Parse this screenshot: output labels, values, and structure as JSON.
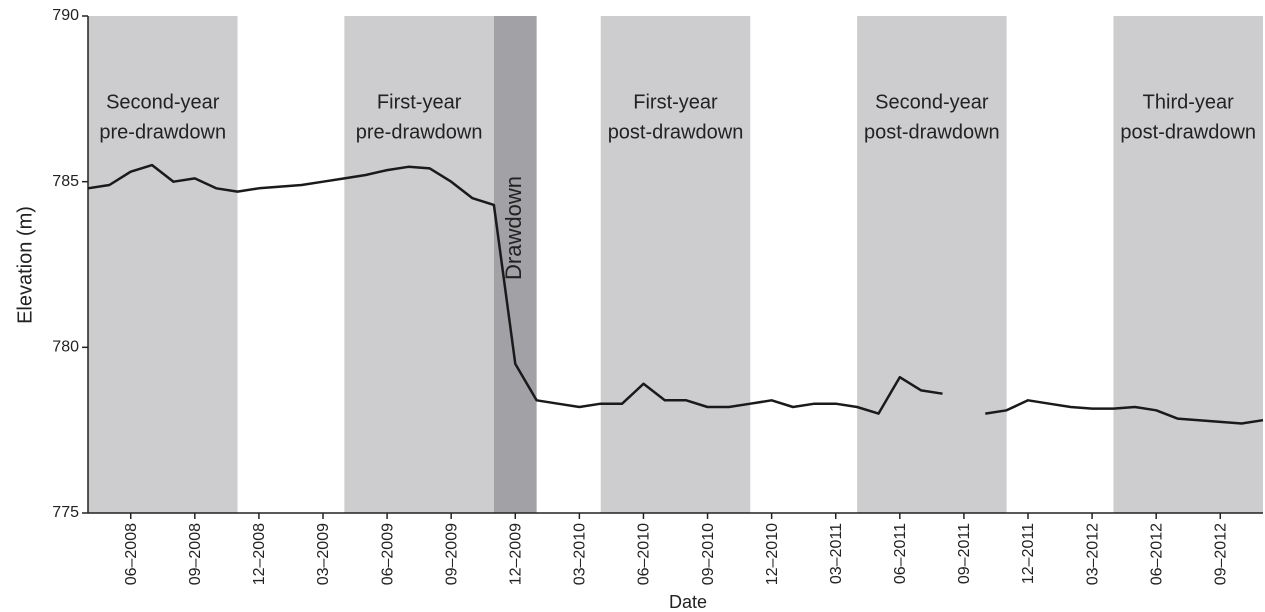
{
  "chart_data": {
    "type": "line",
    "x_label": "Date",
    "y_label": "Elevation (m)",
    "x": [
      "2008-04",
      "2008-05",
      "2008-06",
      "2008-07",
      "2008-08",
      "2008-09",
      "2008-10",
      "2008-11",
      "2008-12",
      "2009-01",
      "2009-02",
      "2009-03",
      "2009-04",
      "2009-05",
      "2009-06",
      "2009-07",
      "2009-08",
      "2009-09",
      "2009-10",
      "2009-11",
      "2009-12",
      "2010-01",
      "2010-02",
      "2010-03",
      "2010-04",
      "2010-05",
      "2010-06",
      "2010-07",
      "2010-08",
      "2010-09",
      "2010-10",
      "2010-11",
      "2010-12",
      "2011-01",
      "2011-02",
      "2011-03",
      "2011-04",
      "2011-05",
      "2011-06",
      "2011-07",
      "2011-08",
      "2011-09",
      "2011-10",
      "2011-11",
      "2011-12",
      "2012-01",
      "2012-02",
      "2012-03",
      "2012-04",
      "2012-05",
      "2012-06",
      "2012-07",
      "2012-08",
      "2012-09",
      "2012-10",
      "2012-11"
    ],
    "series": [
      {
        "color": "#1a1a1a",
        "values": [
          784.8,
          784.9,
          785.3,
          785.5,
          785.0,
          785.1,
          784.8,
          784.7,
          784.8,
          784.85,
          784.9,
          785.0,
          785.1,
          785.2,
          785.35,
          785.45,
          785.4,
          785.0,
          784.5,
          784.3,
          779.5,
          778.4,
          778.3,
          778.2,
          778.3,
          778.3,
          778.9,
          778.4,
          778.4,
          778.2,
          778.2,
          778.3,
          778.4,
          778.2,
          778.3,
          778.3,
          778.2,
          778.0,
          779.1,
          778.7,
          778.6,
          null,
          778.0,
          778.1,
          778.4,
          778.3,
          778.2,
          778.15,
          778.15,
          778.2,
          778.1,
          777.85,
          777.8,
          777.75,
          777.7,
          777.8
        ]
      }
    ],
    "xlim": [
      "2008-04",
      "2012-11"
    ],
    "xticks": [
      {
        "value": "2008-06",
        "label": "06–2008"
      },
      {
        "value": "2008-09",
        "label": "09–2008"
      },
      {
        "value": "2008-12",
        "label": "12–2008"
      },
      {
        "value": "2009-03",
        "label": "03–2009"
      },
      {
        "value": "2009-06",
        "label": "06–2009"
      },
      {
        "value": "2009-09",
        "label": "09–2009"
      },
      {
        "value": "2009-12",
        "label": "12–2009"
      },
      {
        "value": "2010-03",
        "label": "03–2010"
      },
      {
        "value": "2010-06",
        "label": "06–2010"
      },
      {
        "value": "2010-09",
        "label": "09–2010"
      },
      {
        "value": "2010-12",
        "label": "12–2010"
      },
      {
        "value": "2011-03",
        "label": "03–2011"
      },
      {
        "value": "2011-06",
        "label": "06–2011"
      },
      {
        "value": "2011-09",
        "label": "09–2011"
      },
      {
        "value": "2011-12",
        "label": "12–2011"
      },
      {
        "value": "2012-03",
        "label": "03–2012"
      },
      {
        "value": "2012-06",
        "label": "06–2012"
      },
      {
        "value": "2012-09",
        "label": "09–2012"
      }
    ],
    "ylim": [
      775,
      790
    ],
    "yticks": [
      775,
      780,
      785,
      790
    ],
    "periods": [
      {
        "label": [
          "Second-year",
          "pre-drawdown"
        ],
        "start": "2008-04",
        "end": "2008-11",
        "color": "#cdcdcf"
      },
      {
        "label": [
          "First-year",
          "pre-drawdown"
        ],
        "start": "2009-04",
        "end": "2009-11",
        "color": "#cdcdcf"
      },
      {
        "label": [
          "Drawdown"
        ],
        "start": "2009-11",
        "end": "2010-01",
        "color": "#a2a2a6",
        "vertical_label": true
      },
      {
        "label": [
          "First-year",
          "post-drawdown"
        ],
        "start": "2010-04",
        "end": "2010-11",
        "color": "#cdcdcf"
      },
      {
        "label": [
          "Second-year",
          "post-drawdown"
        ],
        "start": "2011-04",
        "end": "2011-11",
        "color": "#cdcdcf"
      },
      {
        "label": [
          "Third-year",
          "post-drawdown"
        ],
        "start": "2012-04",
        "end": "2012-11",
        "color": "#cdcdcf"
      }
    ]
  }
}
